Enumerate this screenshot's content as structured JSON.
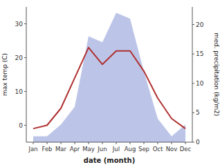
{
  "chart_data": {
    "type": "line",
    "xlabel": "date (month)",
    "ylabel": "max temp (C)",
    "y2label": "med. precipitation (kg/m2)",
    "categories": [
      "Jan",
      "Feb",
      "Mar",
      "Apr",
      "May",
      "Jun",
      "Jul",
      "Aug",
      "Sep",
      "Oct",
      "Nov",
      "Dec"
    ],
    "series": [
      {
        "type": "area",
        "axis": "y2",
        "color": "#bcc5e8",
        "values": [
          1,
          1,
          3,
          6,
          18,
          17,
          22,
          21,
          12,
          4,
          1,
          3
        ]
      },
      {
        "type": "line",
        "color": "#b03030",
        "values": [
          -1,
          0,
          5,
          14,
          23,
          18,
          22,
          22,
          16,
          8,
          2,
          -1
        ]
      }
    ],
    "ylim": [
      -5,
      35
    ],
    "yticks": [
      0,
      10,
      20,
      30
    ],
    "y2lim": [
      0,
      23
    ],
    "y2ticks": [
      0,
      5,
      10,
      15,
      20
    ]
  }
}
